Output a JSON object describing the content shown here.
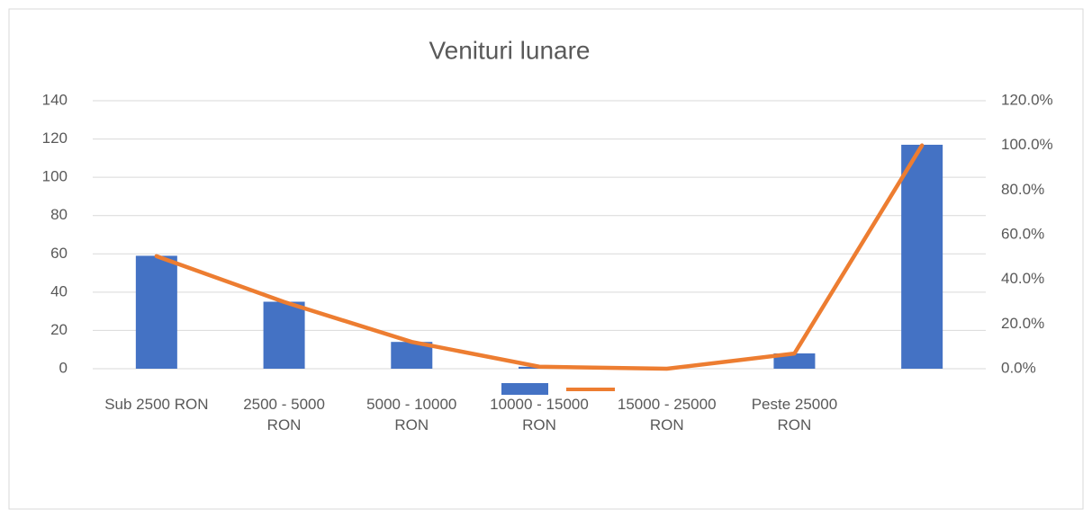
{
  "chart_data": {
    "type": "bar_line",
    "title": "Venituri lunare",
    "categories": [
      "Sub 2500 RON",
      "2500 - 5000 RON",
      "5000 - 10000 RON",
      "10000 - 15000 RON",
      "15000 - 25000 RON",
      "Peste 25000 RON",
      null
    ],
    "series": [
      {
        "type": "bar",
        "color": "#4472c4",
        "values": [
          59,
          35,
          14,
          1,
          0,
          8,
          117
        ]
      },
      {
        "type": "line",
        "color": "#ed7d31",
        "axis": "y2",
        "values": [
          50.4,
          29.9,
          12.0,
          0.9,
          0,
          6.8,
          100
        ]
      }
    ],
    "ylim": [
      0,
      140
    ],
    "yticks": [
      0,
      20,
      40,
      60,
      80,
      100,
      120,
      140
    ],
    "y2lim": [
      0,
      120
    ],
    "y2ticks": [
      {
        "value": 0,
        "label": "0.0%"
      },
      {
        "value": 20,
        "label": "20.0%"
      },
      {
        "value": 40,
        "label": "40.0%"
      },
      {
        "value": 60,
        "label": "60.0%"
      },
      {
        "value": 80,
        "label": "80.0%"
      },
      {
        "value": 100,
        "label": "100.0%"
      },
      {
        "value": 120,
        "label": "120.0%"
      }
    ],
    "grid": true,
    "legend": "bottom"
  }
}
